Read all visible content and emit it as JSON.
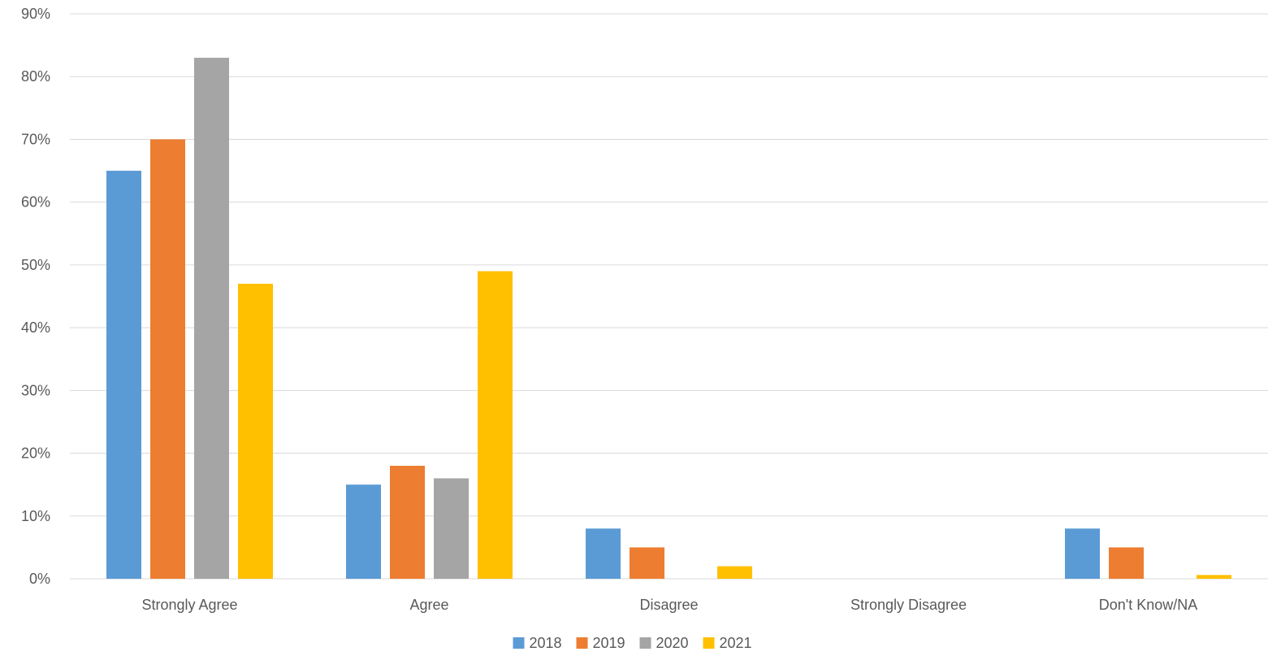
{
  "chart_data": {
    "type": "bar",
    "categories": [
      "Strongly Agree",
      "Agree",
      "Disagree",
      "Strongly Disagree",
      "Don't Know/NA"
    ],
    "series": [
      {
        "name": "2018",
        "color": "#5B9BD5",
        "values": [
          65,
          15,
          8,
          0,
          8
        ]
      },
      {
        "name": "2019",
        "color": "#ED7D31",
        "values": [
          70,
          18,
          5,
          0,
          5
        ]
      },
      {
        "name": "2020",
        "color": "#A5A5A5",
        "values": [
          83,
          16,
          0,
          0,
          0
        ]
      },
      {
        "name": "2021",
        "color": "#FFC000",
        "values": [
          47,
          49,
          2,
          0,
          0.6
        ]
      }
    ],
    "y_ticks": [
      "0%",
      "10%",
      "20%",
      "30%",
      "40%",
      "50%",
      "60%",
      "70%",
      "80%",
      "90%"
    ],
    "ylim": [
      0,
      90
    ],
    "grid": true,
    "legend_position": "bottom-center",
    "gridline_color": "#D9D9D9",
    "text_color": "#595959"
  }
}
